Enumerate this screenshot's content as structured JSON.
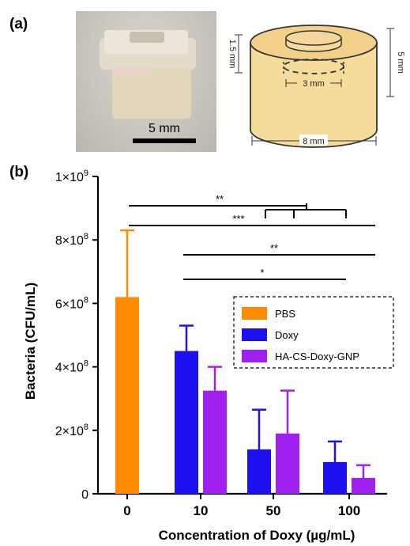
{
  "panel_a": {
    "label": "(a)",
    "scale_bar": "5 mm",
    "dims": {
      "height_inner": "1.5 mm",
      "height_outer": "5 mm",
      "inner_diam": "3 mm",
      "outer_diam": "8 mm"
    }
  },
  "panel_b": {
    "label": "(b)"
  },
  "colors": {
    "PBS": "#ff8c00",
    "Doxy": "#1e10f0",
    "HA-CS-Doxy-GNP": "#a020f0"
  },
  "chart_data": {
    "type": "bar",
    "categories": [
      "0",
      "10",
      "50",
      "100"
    ],
    "xlabel": "Concentration of Doxy (µg/mL)",
    "ylabel": "Bacteria (CFU/mL)",
    "ylim": [
      0,
      1000000000
    ],
    "yticks": [
      {
        "value": 0,
        "base": "0",
        "exp": ""
      },
      {
        "value": 200000000,
        "base": "2×10",
        "exp": "8"
      },
      {
        "value": 400000000,
        "base": "4×10",
        "exp": "8"
      },
      {
        "value": 600000000,
        "base": "6×10",
        "exp": "8"
      },
      {
        "value": 800000000,
        "base": "8×10",
        "exp": "8"
      },
      {
        "value": 1000000000,
        "base": "1×10",
        "exp": "9"
      }
    ],
    "legend_position": "right",
    "series": [
      {
        "name": "PBS",
        "values": [
          620000000,
          null,
          null,
          null
        ],
        "errors": [
          210000000,
          null,
          null,
          null
        ]
      },
      {
        "name": "Doxy",
        "values": [
          null,
          450000000,
          140000000,
          100000000
        ],
        "errors": [
          null,
          80000000,
          125000000,
          65000000
        ]
      },
      {
        "name": "HA-CS-Doxy-GNP",
        "values": [
          null,
          325000000,
          190000000,
          50000000
        ],
        "errors": [
          null,
          75000000,
          135000000,
          40000000
        ]
      }
    ],
    "significance": [
      {
        "label": "**",
        "from": "PBS 0",
        "to": "Doxy 50 – Doxy 100 (bracket)"
      },
      {
        "label": "***",
        "from": "PBS 0",
        "to": "HA-CS-Doxy-GNP 100"
      },
      {
        "label": "**",
        "from": "Doxy 10",
        "to": "HA-CS-Doxy-GNP 100"
      },
      {
        "label": "*",
        "from": "Doxy 10",
        "to": "Doxy 100"
      }
    ]
  }
}
